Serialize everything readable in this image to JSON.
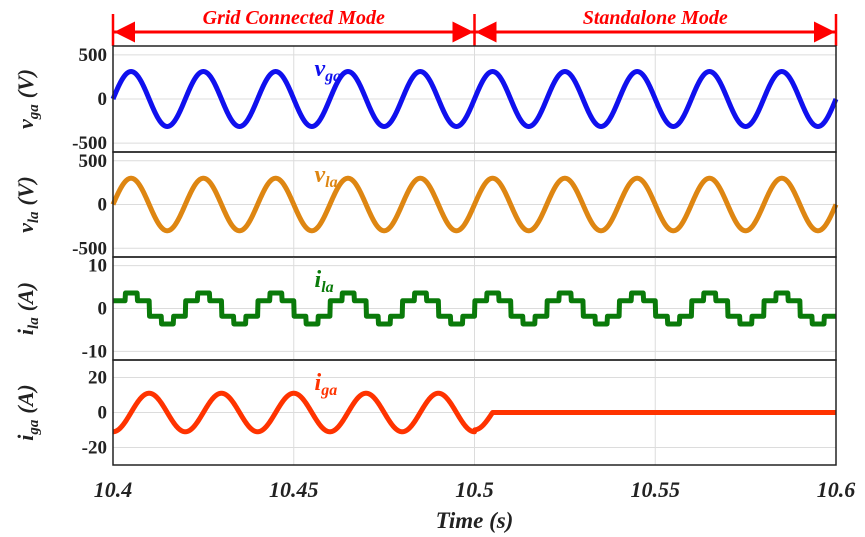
{
  "chart_data": {
    "type": "line",
    "title": "",
    "xlabel": "Time (s)",
    "xlim": [
      10.4,
      10.6
    ],
    "x_ticks": [
      "10.4",
      "10.45",
      "10.5",
      "10.55",
      "10.6"
    ],
    "grid": true,
    "modes": [
      {
        "label": "Grid Connected Mode",
        "x_start": 10.4,
        "x_end": 10.5
      },
      {
        "label": "Standalone Mode",
        "x_start": 10.5,
        "x_end": 10.6
      }
    ],
    "panels": [
      {
        "id": "vga",
        "ylabel_main": "v",
        "ylabel_sub": "ga",
        "ylabel_unit": "(V)",
        "series_label_main": "v",
        "series_label_sub": "ga",
        "color": "#1010ee",
        "ylim": [
          -600,
          600
        ],
        "y_ticks": [
          "500",
          "0",
          "-500"
        ],
        "y_tick_values": [
          500,
          0,
          -500
        ],
        "waveform": "sine",
        "amplitude": 311,
        "frequency_hz": 50
      },
      {
        "id": "vla",
        "ylabel_main": "v",
        "ylabel_sub": "la",
        "ylabel_unit": "(V)",
        "series_label_main": "v",
        "series_label_sub": "la",
        "color": "#de8612",
        "ylim": [
          -600,
          600
        ],
        "y_ticks": [
          "500",
          "0",
          "-500"
        ],
        "y_tick_values": [
          500,
          0,
          -500
        ],
        "waveform": "sine",
        "amplitude": 300,
        "frequency_hz": 50
      },
      {
        "id": "ila",
        "ylabel_main": "i",
        "ylabel_sub": "la",
        "ylabel_unit": "(A)",
        "series_label_main": "i",
        "series_label_sub": "la",
        "color": "#0a7a0a",
        "ylim": [
          -12,
          12
        ],
        "y_ticks": [
          "10",
          "0",
          "-10"
        ],
        "y_tick_values": [
          10,
          0,
          -10
        ],
        "waveform": "six-step",
        "amplitude": 3.6,
        "frequency_hz": 50
      },
      {
        "id": "iga",
        "ylabel_main": "i",
        "ylabel_sub": "ga",
        "ylabel_unit": "(A)",
        "series_label_main": "i",
        "series_label_sub": "ga",
        "color": "#ff3300",
        "ylim": [
          -30,
          30
        ],
        "y_ticks": [
          "20",
          "0",
          "-20"
        ],
        "y_tick_values": [
          20,
          0,
          -20
        ],
        "waveform": "sine-then-zero",
        "amplitude": 11,
        "frequency_hz": 50,
        "transition_x": 10.505,
        "value_after_transition": 0
      }
    ]
  }
}
